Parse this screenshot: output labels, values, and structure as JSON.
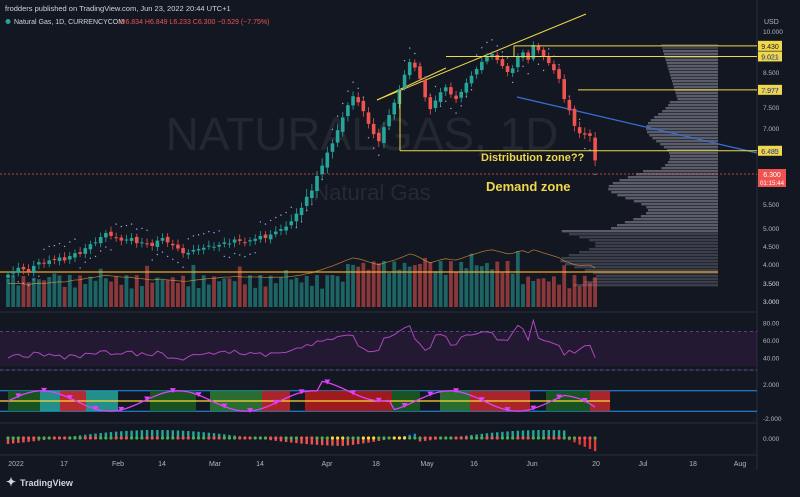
{
  "header": {
    "publisher": "frodders published on TradingView.com, Jun 23, 2022 20:44 UTC+1",
    "symbol": "Natural Gas, 1D, CURRENCYCOM",
    "ohlc": "O6.834  H6.849  L6.233  C6.300  −0.529 (−7.75%)"
  },
  "watermark": {
    "line1": "NATURALGAS, 1D",
    "line2": "Natural Gas"
  },
  "footer": {
    "brand": "TradingView"
  },
  "colors": {
    "bull": "#26a69a",
    "bear": "#ef5350",
    "accent": "#f0d84a",
    "background": "#131722",
    "trend": "#3a6fd8",
    "rsi": "#9c27b0",
    "oscillator": "#e040fb"
  },
  "chart_data": [
    {
      "type": "candlestick",
      "currency": "USD",
      "x_ticks": [
        "2022",
        "17",
        "Feb",
        "14",
        "Mar",
        "14",
        "Apr",
        "18",
        "May",
        "16",
        "Jun",
        "20",
        "Jul",
        "18",
        "Aug"
      ],
      "y_ticks": [
        "10.000",
        "9.000",
        "8.500",
        "8.000",
        "7.500",
        "7.000",
        "6.500",
        "6.000",
        "5.500",
        "5.000",
        "4.500",
        "4.000",
        "3.500",
        "3.000"
      ],
      "ylim": [
        3.0,
        10.0
      ],
      "levels": [
        {
          "label": "9.430",
          "value": 9.43
        },
        {
          "label": "9.021",
          "value": 9.021
        },
        {
          "label": "7.977",
          "value": 7.977
        },
        {
          "label": "6.485",
          "value": 6.485
        }
      ],
      "last_price": {
        "value": "6.300",
        "countdown": "01:15:44"
      },
      "annotations": [
        "Distribution zone??",
        "Demand zone"
      ],
      "closes": [
        3.72,
        3.81,
        3.9,
        3.86,
        3.8,
        3.95,
        4.05,
        4.02,
        4.1,
        4.12,
        4.18,
        4.1,
        4.22,
        4.3,
        4.28,
        4.44,
        4.55,
        4.6,
        4.75,
        4.86,
        4.78,
        4.72,
        4.65,
        4.68,
        4.72,
        4.58,
        4.6,
        4.55,
        4.5,
        4.65,
        4.72,
        4.6,
        4.52,
        4.43,
        4.3,
        4.31,
        4.39,
        4.42,
        4.45,
        4.51,
        4.48,
        4.53,
        4.6,
        4.57,
        4.68,
        4.64,
        4.59,
        4.66,
        4.7,
        4.78,
        4.72,
        4.82,
        4.9,
        4.97,
        5.03,
        5.14,
        5.3,
        5.42,
        5.63,
        5.74,
        6.0,
        6.2,
        6.45,
        6.65,
        6.95,
        7.25,
        7.55,
        7.8,
        7.63,
        7.4,
        7.1,
        6.86,
        6.7,
        7.02,
        7.31,
        7.62,
        8.0,
        8.42,
        8.83,
        8.65,
        8.3,
        7.77,
        7.45,
        7.68,
        7.91,
        8.05,
        7.85,
        7.72,
        7.92,
        8.18,
        8.39,
        8.6,
        8.84,
        9.02,
        9.12,
        8.9,
        8.7,
        8.5,
        8.62,
        9.0,
        9.18,
        8.91,
        9.46,
        9.26,
        9.02,
        8.8,
        8.56,
        8.3,
        7.72,
        7.42,
        7.05,
        6.88,
        6.85,
        6.82,
        6.3
      ],
      "volume_axis": [
        "3.500",
        "3.000"
      ],
      "rsi": {
        "ticks": [
          "80.00",
          "60.00",
          "40.00"
        ],
        "range": [
          30,
          90
        ]
      },
      "oscillator": {
        "ticks": [
          "2.000",
          "-2.000"
        ],
        "range": [
          -3,
          3
        ]
      },
      "momentum": {
        "ticks": [
          "0.000"
        ]
      }
    }
  ]
}
